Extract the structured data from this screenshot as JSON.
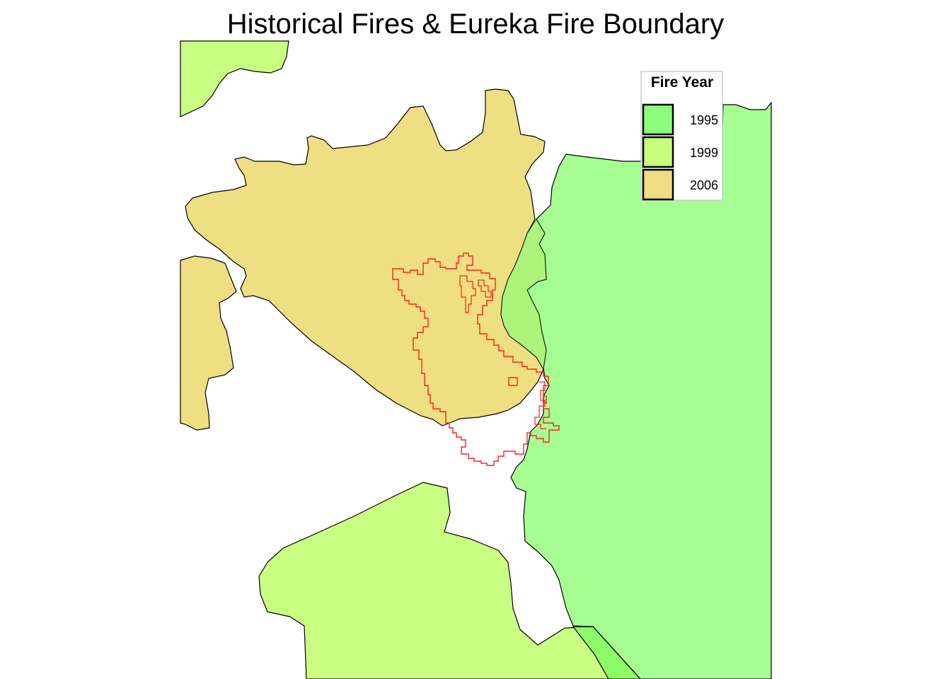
{
  "map": {
    "title": "Historical Fires & Eureka Fire Boundary"
  },
  "legend": {
    "title": "Fire Year",
    "items": [
      {
        "label": "1995",
        "color": "#8cfc7c"
      },
      {
        "label": "1999",
        "color": "#c8fc7c"
      },
      {
        "label": "2006",
        "color": "#f0dc82"
      }
    ]
  },
  "colors": {
    "fire_1995": "#a6fe92",
    "fire_1999": "#c9fe83",
    "fire_2006": "#efdf83",
    "overlap_1995_1999": "#8bfc66",
    "eureka_boundary": "#ff2020",
    "outline": "#000000"
  }
}
